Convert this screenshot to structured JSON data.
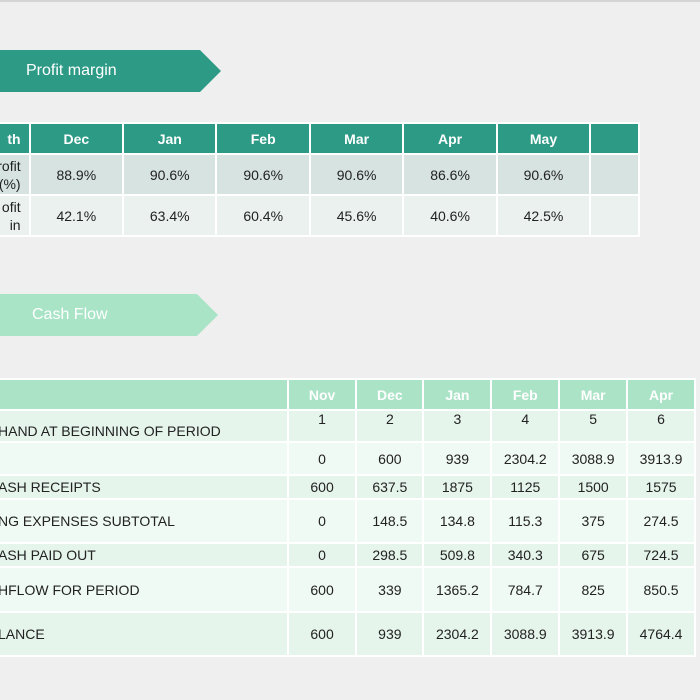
{
  "profit_section": {
    "banner": "Profit margin",
    "header_partial": "th",
    "months": [
      "Dec",
      "Jan",
      "Feb",
      "Mar",
      "Apr",
      "May"
    ],
    "rows": [
      {
        "label_line1": "rofit",
        "label_line2": "(%)",
        "values": [
          "88.9%",
          "90.6%",
          "90.6%",
          "90.6%",
          "86.6%",
          "90.6%"
        ]
      },
      {
        "label_line1": "ofit",
        "label_line2": "in",
        "values": [
          "42.1%",
          "63.4%",
          "60.4%",
          "45.6%",
          "40.6%",
          "42.5%"
        ]
      }
    ]
  },
  "cash_section": {
    "banner": "Cash Flow",
    "months": [
      "Nov",
      "Dec",
      "Jan",
      "Feb",
      "Mar",
      "Apr"
    ],
    "rows": [
      {
        "label": "HAND AT BEGINNING OF PERIOD",
        "values": [
          "1",
          "2",
          "3",
          "4",
          "5",
          "6"
        ]
      },
      {
        "label": "",
        "values": [
          "0",
          "600",
          "939",
          "2304.2",
          "3088.9",
          "3913.9"
        ]
      },
      {
        "label": "ASH RECEIPTS",
        "values": [
          "600",
          "637.5",
          "1875",
          "1125",
          "1500",
          "1575"
        ]
      },
      {
        "label": "NG EXPENSES SUBTOTAL",
        "values": [
          "0",
          "148.5",
          "134.8",
          "115.3",
          "375",
          "274.5"
        ]
      },
      {
        "label": "ASH PAID OUT",
        "values": [
          "0",
          "298.5",
          "509.8",
          "340.3",
          "675",
          "724.5"
        ]
      },
      {
        "label": "HFLOW FOR PERIOD",
        "values": [
          "600",
          "339",
          "1365.2",
          "784.7",
          "825",
          "850.5"
        ]
      },
      {
        "label": "LANCE",
        "values": [
          "600",
          "939",
          "2304.2",
          "3088.9",
          "3913.9",
          "4764.4"
        ]
      }
    ]
  },
  "colors": {
    "dark_teal": "#2d9a86",
    "light_mint": "#abe3c6",
    "background": "#efefef"
  }
}
